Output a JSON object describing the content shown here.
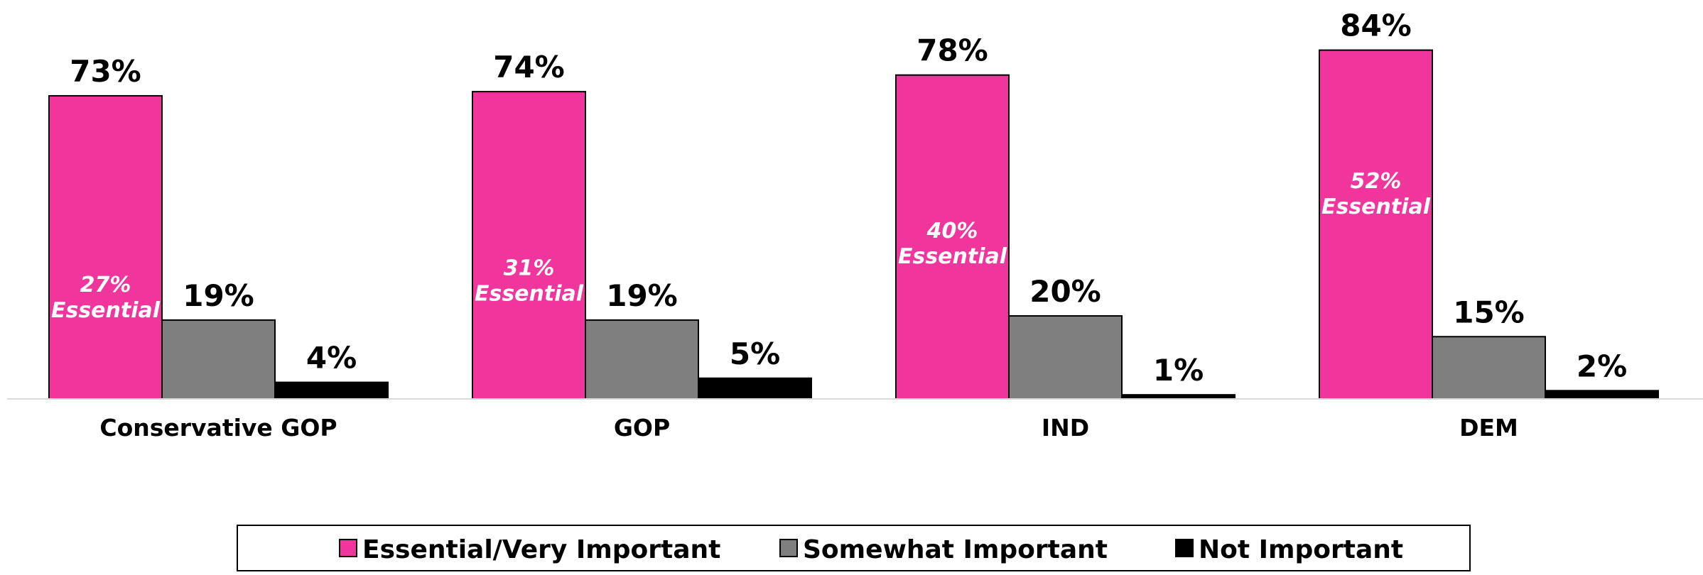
{
  "chart_data": {
    "type": "bar",
    "categories": [
      "Conservative GOP",
      "GOP",
      "IND",
      "DEM"
    ],
    "series": [
      {
        "name": "Essential/Very Important",
        "values": [
          73,
          74,
          78,
          84
        ],
        "value_labels": [
          "73%",
          "74%",
          "78%",
          "84%"
        ],
        "inner_labels": [
          [
            "27%",
            "Essential"
          ],
          [
            "31%",
            "Essential"
          ],
          [
            "40%",
            "Essential"
          ],
          [
            "52%",
            "Essential"
          ]
        ],
        "inner_values": [
          27,
          31,
          40,
          52
        ],
        "color": "#F0359D"
      },
      {
        "name": "Somewhat Important",
        "values": [
          19,
          19,
          20,
          15
        ],
        "value_labels": [
          "19%",
          "19%",
          "20%",
          "15%"
        ],
        "color": "#7F7F7F"
      },
      {
        "name": "Not Important",
        "values": [
          4,
          5,
          1,
          2
        ],
        "value_labels": [
          "4%",
          "5%",
          "1%",
          "2%"
        ],
        "color": "#000000"
      }
    ],
    "ylim": [
      0,
      84
    ],
    "grid": false,
    "legend_position": "bottom"
  }
}
